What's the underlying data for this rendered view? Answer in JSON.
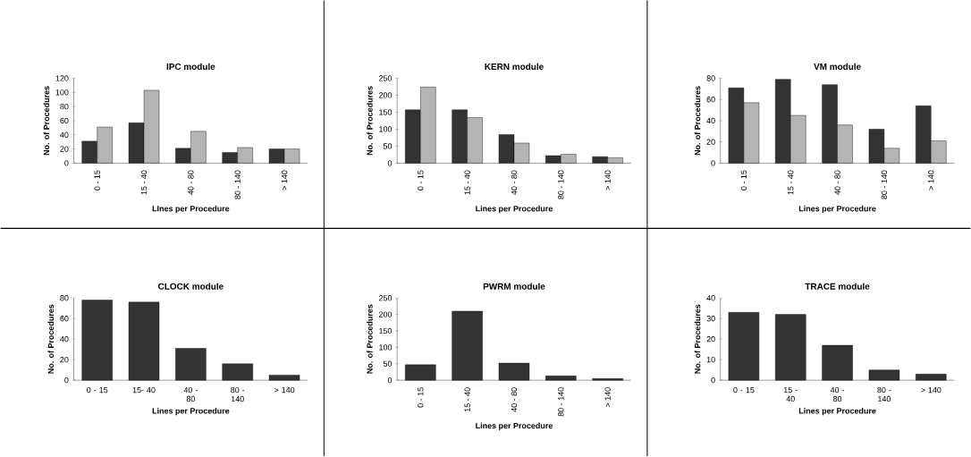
{
  "chart_data": [
    {
      "type": "bar",
      "title": "IPC module",
      "xlabel": "LInes per Procedure",
      "ylabel": "No. of Procedures",
      "categories": [
        "0 - 15",
        "15 - 40",
        "40 - 80",
        "80 - 140",
        "> 140"
      ],
      "ylim": [
        0,
        120
      ],
      "yticks": [
        0,
        20,
        40,
        60,
        80,
        100,
        120
      ],
      "series": [
        {
          "color": "#333333",
          "values": [
            31,
            57,
            21,
            15,
            20
          ]
        },
        {
          "color": "#b4b4b4",
          "values": [
            51,
            103,
            45,
            22,
            20
          ]
        }
      ]
    },
    {
      "type": "bar",
      "title": "KERN module",
      "xlabel": "Lines per Procedure",
      "ylabel": "No. of Procedures",
      "categories": [
        "0 - 15",
        "15 - 40",
        "40 - 80",
        "80 - 140",
        "> 140"
      ],
      "ylim": [
        0,
        250
      ],
      "yticks": [
        0,
        50,
        100,
        150,
        200,
        250
      ],
      "series": [
        {
          "color": "#333333",
          "values": [
            157,
            157,
            84,
            22,
            19
          ]
        },
        {
          "color": "#b4b4b4",
          "values": [
            224,
            134,
            59,
            26,
            16
          ]
        }
      ]
    },
    {
      "type": "bar",
      "title": "VM module",
      "xlabel": "Lines per Procedure",
      "ylabel": "No. of Procedures",
      "categories": [
        "0 - 15",
        "15 - 40",
        "40 - 80",
        "80 - 140",
        "> 140"
      ],
      "ylim": [
        0,
        80
      ],
      "yticks": [
        0,
        20,
        40,
        60,
        80
      ],
      "series": [
        {
          "color": "#333333",
          "values": [
            71,
            79,
            74,
            32,
            54
          ]
        },
        {
          "color": "#b4b4b4",
          "values": [
            57,
            45,
            36,
            14,
            21
          ]
        }
      ]
    },
    {
      "type": "bar",
      "title": "CLOCK module",
      "xlabel": "Lines per Procedure",
      "ylabel": "No. of Procedures",
      "categories": [
        "0 - 15",
        "15- 40",
        "40 - 80",
        "80 - 140",
        "> 140"
      ],
      "ylim": [
        0,
        80
      ],
      "yticks": [
        0,
        20,
        40,
        60,
        80
      ],
      "series": [
        {
          "color": "#333333",
          "values": [
            78,
            76,
            31,
            16,
            5
          ]
        }
      ]
    },
    {
      "type": "bar",
      "title": "PWRM module",
      "xlabel": "Lines per Procedure",
      "ylabel": "No. of Procedures",
      "categories": [
        "0 - 15",
        "15 - 40",
        "40 - 80",
        "80 - 140",
        "> 140"
      ],
      "ylim": [
        0,
        250
      ],
      "yticks": [
        0,
        50,
        100,
        150,
        200,
        250
      ],
      "series": [
        {
          "color": "#333333",
          "values": [
            47,
            210,
            52,
            13,
            5
          ]
        }
      ]
    },
    {
      "type": "bar",
      "title": "TRACE module",
      "xlabel": "Lines per Procedure",
      "ylabel": "No. of Procedures",
      "categories": [
        "0 - 15",
        "15 - 40",
        "40 - 80",
        "80 - 140",
        "> 140"
      ],
      "ylim": [
        0,
        40
      ],
      "yticks": [
        0,
        10,
        20,
        30,
        40
      ],
      "series": [
        {
          "color": "#333333",
          "values": [
            33,
            32,
            17,
            5,
            3
          ]
        }
      ]
    }
  ]
}
